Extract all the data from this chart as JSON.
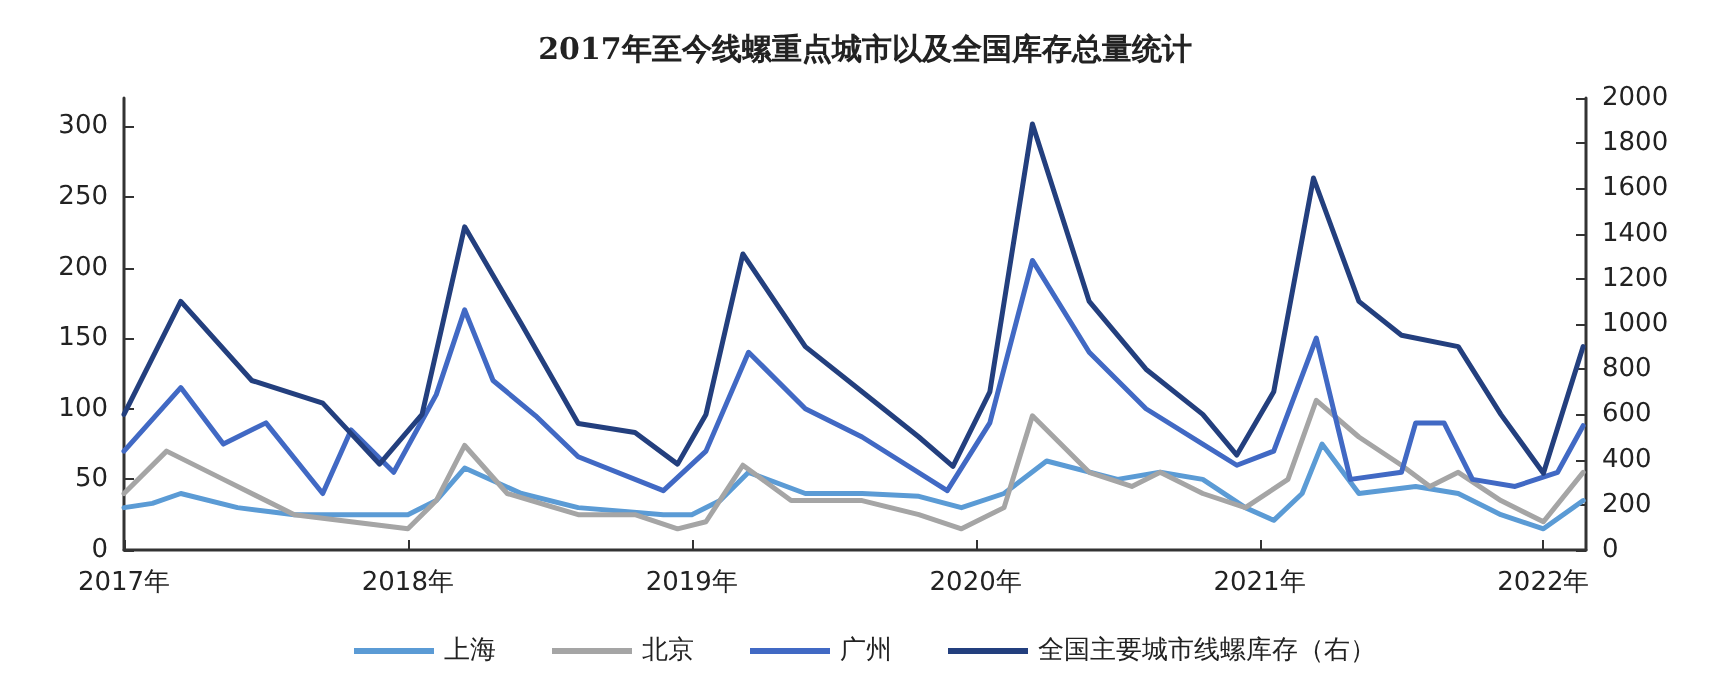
{
  "chart_data": {
    "type": "line",
    "title": "2017年至今线螺重点城市以及全国库存总量统计",
    "xlim": [
      2017,
      2022.15
    ],
    "xticks": [
      {
        "value": 2017,
        "label": "2017年"
      },
      {
        "value": 2018,
        "label": "2018年"
      },
      {
        "value": 2019,
        "label": "2019年"
      },
      {
        "value": 2020,
        "label": "2020年"
      },
      {
        "value": 2021,
        "label": "2021年"
      },
      {
        "value": 2022,
        "label": "2022年"
      }
    ],
    "ylim": [
      0,
      320
    ],
    "yticks": [
      0,
      50,
      100,
      150,
      200,
      250,
      300
    ],
    "y2lim": [
      0,
      2000
    ],
    "y2ticks": [
      0,
      200,
      400,
      600,
      800,
      1000,
      1200,
      1400,
      1600,
      1800,
      2000
    ],
    "grid": false,
    "legend": "bottom",
    "marker": "none",
    "line_style": "solid",
    "series": [
      {
        "name": "上海",
        "color": "#5b9bd5",
        "x": [
          2017,
          2017.1,
          2017.2,
          2017.4,
          2017.6,
          2017.8,
          2018,
          2018.1,
          2018.2,
          2018.4,
          2018.6,
          2018.9,
          2019,
          2019.1,
          2019.2,
          2019.4,
          2019.6,
          2019.8,
          2019.95,
          2020.1,
          2020.25,
          2020.5,
          2020.65,
          2020.8,
          2020.95,
          2021.05,
          2021.15,
          2021.22,
          2021.35,
          2021.55,
          2021.7,
          2021.85,
          2022,
          2022.14
        ],
        "values": [
          30,
          33,
          40,
          30,
          25,
          25,
          25,
          35,
          58,
          40,
          30,
          25,
          25,
          35,
          55,
          40,
          40,
          38,
          30,
          40,
          63,
          50,
          55,
          50,
          30,
          21,
          40,
          75,
          40,
          45,
          40,
          25,
          15,
          35
        ]
      },
      {
        "name": "北京",
        "color": "#a5a5a5",
        "x": [
          2017,
          2017.15,
          2017.35,
          2017.6,
          2017.8,
          2018,
          2018.1,
          2018.2,
          2018.35,
          2018.6,
          2018.8,
          2018.95,
          2019.05,
          2019.18,
          2019.35,
          2019.6,
          2019.8,
          2019.95,
          2020.1,
          2020.2,
          2020.4,
          2020.55,
          2020.65,
          2020.8,
          2020.95,
          2021.1,
          2021.2,
          2021.35,
          2021.5,
          2021.6,
          2021.7,
          2021.85,
          2022,
          2022.14
        ],
        "values": [
          40,
          70,
          50,
          25,
          20,
          15,
          35,
          74,
          40,
          25,
          25,
          15,
          20,
          60,
          35,
          35,
          25,
          15,
          30,
          95,
          55,
          45,
          55,
          40,
          30,
          50,
          106,
          80,
          60,
          45,
          55,
          35,
          20,
          55
        ]
      },
      {
        "name": "广州",
        "color": "#4169c4",
        "x": [
          2017,
          2017.2,
          2017.35,
          2017.5,
          2017.7,
          2017.8,
          2017.95,
          2018.1,
          2018.2,
          2018.3,
          2018.45,
          2018.6,
          2018.9,
          2019.05,
          2019.2,
          2019.4,
          2019.6,
          2019.9,
          2020.05,
          2020.2,
          2020.4,
          2020.6,
          2020.8,
          2020.92,
          2021.05,
          2021.2,
          2021.32,
          2021.5,
          2021.55,
          2021.65,
          2021.75,
          2021.9,
          2022.05,
          2022.14
        ],
        "values": [
          70,
          115,
          75,
          90,
          40,
          85,
          55,
          110,
          170,
          120,
          95,
          66,
          42,
          70,
          140,
          100,
          80,
          42,
          90,
          205,
          140,
          100,
          75,
          60,
          70,
          150,
          50,
          55,
          90,
          90,
          50,
          45,
          55,
          88
        ]
      },
      {
        "name": "全国主要城市线螺库存（右）",
        "color": "#233f7e",
        "axis": "y2",
        "x": [
          2017,
          2017.2,
          2017.45,
          2017.7,
          2017.9,
          2018.05,
          2018.2,
          2018.4,
          2018.6,
          2018.8,
          2018.95,
          2019.05,
          2019.18,
          2019.4,
          2019.6,
          2019.8,
          2019.92,
          2020.05,
          2020.2,
          2020.4,
          2020.6,
          2020.8,
          2020.92,
          2021.05,
          2021.19,
          2021.35,
          2021.5,
          2021.7,
          2021.85,
          2022,
          2022.14
        ],
        "values": [
          600,
          1100,
          750,
          650,
          380,
          600,
          1430,
          1000,
          560,
          520,
          380,
          600,
          1310,
          900,
          700,
          500,
          370,
          700,
          1885,
          1100,
          800,
          600,
          420,
          700,
          1646,
          1100,
          950,
          900,
          600,
          340,
          900
        ]
      }
    ]
  }
}
